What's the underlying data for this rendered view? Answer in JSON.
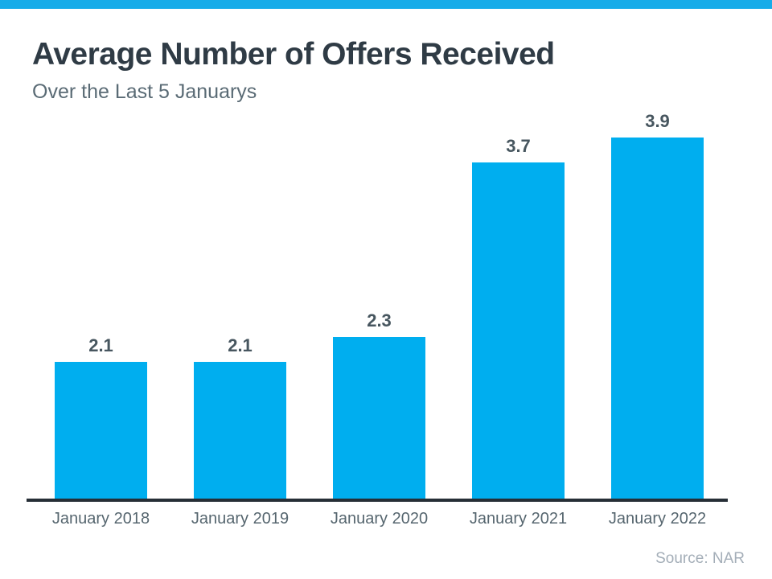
{
  "top_strip": {
    "color": "#17ace9"
  },
  "header": {
    "title": "Average Number of Offers Received",
    "subtitle": "Over the Last 5 Januarys"
  },
  "chart_data": {
    "type": "bar",
    "title": "Average Number of Offers Received",
    "subtitle": "Over the Last 5 Januarys",
    "categories": [
      "January 2018",
      "January 2019",
      "January 2020",
      "January 2021",
      "January 2022"
    ],
    "values": [
      2.1,
      2.1,
      2.3,
      3.7,
      3.9
    ],
    "data_labels": [
      "2.1",
      "2.1",
      "2.3",
      "3.7",
      "3.9"
    ],
    "bar_color": "#00aeef",
    "value_label_color": "#47565f",
    "category_label_color": "#56666f",
    "axis_line_color": "#262e36",
    "xlabel": "",
    "ylabel": "",
    "ylim": [
      1.0,
      4.05
    ],
    "grid": false,
    "legend": false
  },
  "footer": {
    "source": "Source: NAR"
  }
}
